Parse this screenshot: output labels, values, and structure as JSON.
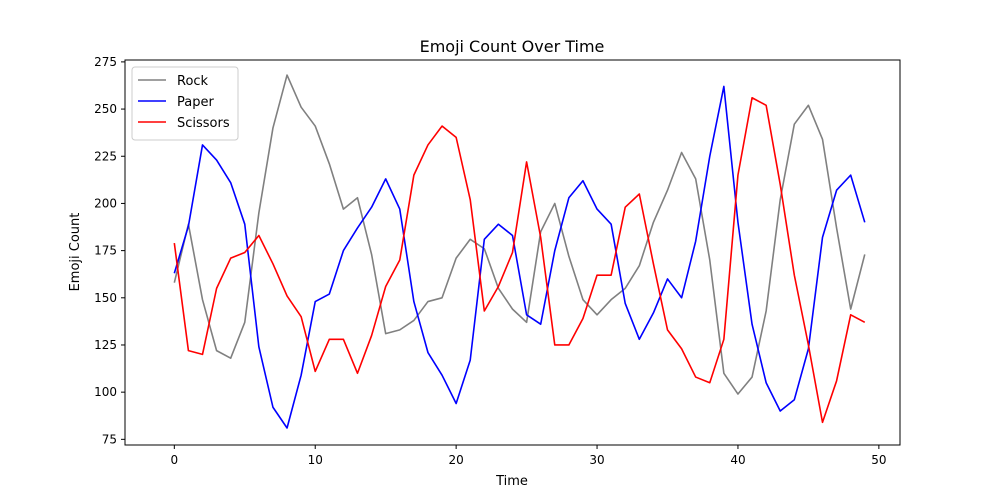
{
  "chart_data": {
    "type": "line",
    "title": "Emoji Count Over Time",
    "xlabel": "Time",
    "ylabel": "Emoji Count",
    "xlim": [
      -3.5,
      51.5
    ],
    "ylim": [
      72,
      276
    ],
    "xticks": [
      0,
      10,
      20,
      30,
      40,
      50
    ],
    "yticks": [
      75,
      100,
      125,
      150,
      175,
      200,
      225,
      250,
      275
    ],
    "grid": false,
    "legend_position": "top-left",
    "x": [
      0,
      1,
      2,
      3,
      4,
      5,
      6,
      7,
      8,
      9,
      10,
      11,
      12,
      13,
      14,
      15,
      16,
      17,
      18,
      19,
      20,
      21,
      22,
      23,
      24,
      25,
      26,
      27,
      28,
      29,
      30,
      31,
      32,
      33,
      34,
      35,
      36,
      37,
      38,
      39,
      40,
      41,
      42,
      43,
      44,
      45,
      46,
      47,
      48,
      49
    ],
    "series": [
      {
        "name": "Rock",
        "color": "#808080",
        "values": [
          158,
          189,
          149,
          122,
          118,
          137,
          195,
          240,
          268,
          251,
          241,
          221,
          197,
          203,
          173,
          131,
          133,
          138,
          148,
          150,
          171,
          181,
          176,
          155,
          144,
          137,
          185,
          200,
          172,
          149,
          141,
          149,
          155,
          167,
          190,
          207,
          227,
          213,
          170,
          110,
          99,
          108,
          143,
          202,
          242,
          252,
          234,
          187,
          144,
          173
        ]
      },
      {
        "name": "Paper",
        "color": "#0000ff",
        "values": [
          163,
          188,
          231,
          223,
          211,
          189,
          124,
          92,
          81,
          109,
          148,
          152,
          175,
          187,
          198,
          213,
          197,
          148,
          121,
          109,
          94,
          117,
          181,
          189,
          183,
          141,
          136,
          175,
          203,
          212,
          197,
          189,
          147,
          128,
          142,
          160,
          150,
          180,
          225,
          262,
          190,
          136,
          105,
          90,
          96,
          123,
          182,
          207,
          215,
          190
        ]
      },
      {
        "name": "Scissors",
        "color": "#ff0000",
        "values": [
          179,
          122,
          120,
          155,
          171,
          174,
          183,
          168,
          151,
          140,
          111,
          128,
          128,
          110,
          130,
          156,
          170,
          215,
          231,
          241,
          235,
          202,
          143,
          156,
          174,
          222,
          182,
          125,
          125,
          139,
          162,
          162,
          198,
          205,
          168,
          133,
          123,
          108,
          105,
          128,
          215,
          256,
          252,
          210,
          162,
          125,
          84,
          106,
          141,
          137
        ]
      }
    ]
  }
}
